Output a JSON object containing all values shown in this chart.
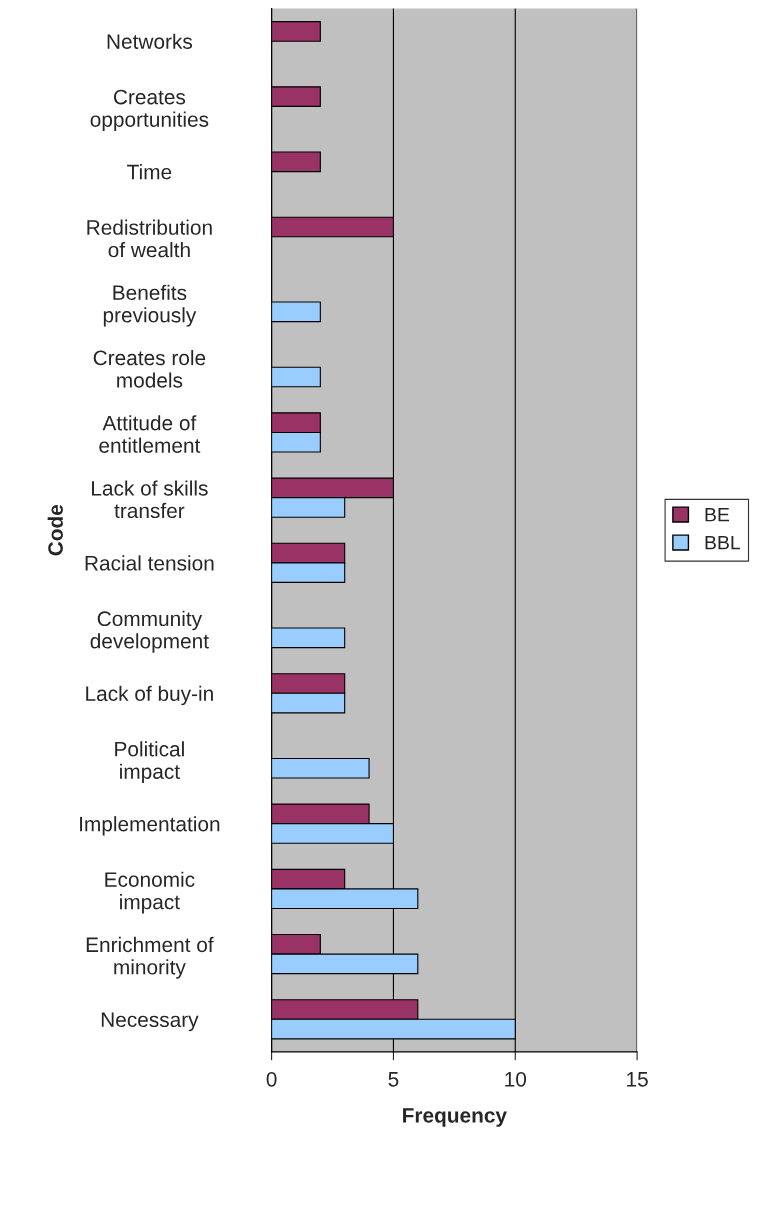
{
  "chart_data": {
    "type": "bar",
    "orientation": "horizontal",
    "xlabel": "Frequency",
    "ylabel": "Code",
    "categories": [
      "Networks",
      "Creates\nopportunities",
      "Time",
      "Redistribution\nof wealth",
      "Benefits\npreviously",
      "Creates role\nmodels",
      "Attitude of\nentitlement",
      "Lack of skills\ntransfer",
      "Racial tension",
      "Community\ndevelopment",
      "Lack of buy-in",
      "Political\nimpact",
      "Implementation",
      "Economic\nimpact",
      "Enrichment of\nminority",
      "Necessary"
    ],
    "series": [
      {
        "name": "BE",
        "color": "#993366",
        "values": [
          2,
          2,
          2,
          5,
          null,
          null,
          2,
          5,
          3,
          null,
          3,
          null,
          4,
          3,
          2,
          6
        ]
      },
      {
        "name": "BBL",
        "color": "#99ccff",
        "values": [
          null,
          null,
          null,
          null,
          2,
          2,
          2,
          3,
          3,
          3,
          3,
          4,
          5,
          6,
          6,
          10
        ]
      }
    ],
    "xlim": [
      0,
      15
    ],
    "xticks": [
      0,
      5,
      10,
      15
    ],
    "grid": "x",
    "legend": "right"
  }
}
